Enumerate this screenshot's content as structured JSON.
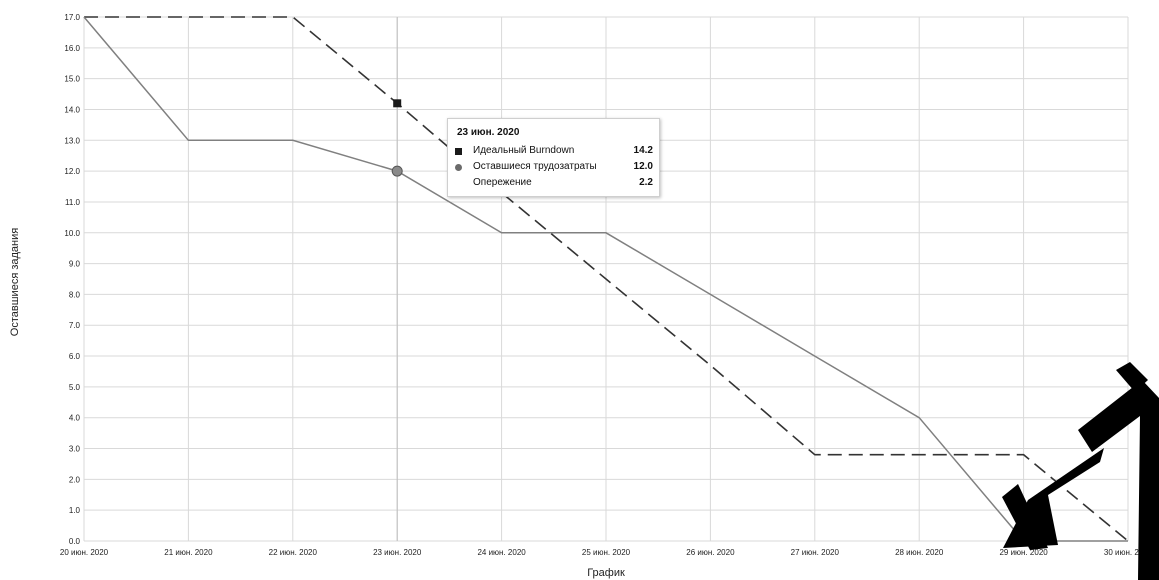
{
  "chart_data": {
    "type": "line",
    "title": "",
    "xlabel": "График",
    "ylabel": "Оставшиеся задания",
    "categories": [
      "20 июн. 2020",
      "21 июн. 2020",
      "22 июн. 2020",
      "23 июн. 2020",
      "24 июн. 2020",
      "25 июн. 2020",
      "26 июн. 2020",
      "27 июн. 2020",
      "28 июн. 2020",
      "29 июн. 2020",
      "30 июн. 2020"
    ],
    "ylim": [
      0,
      17
    ],
    "yticks": [
      "0.0",
      "1.0",
      "2.0",
      "3.0",
      "4.0",
      "5.0",
      "6.0",
      "7.0",
      "8.0",
      "9.0",
      "10.0",
      "11.0",
      "12.0",
      "13.0",
      "14.0",
      "15.0",
      "16.0",
      "17.0"
    ],
    "grid": true,
    "series": [
      {
        "name": "Идеальный Burndown",
        "style": "dashed",
        "color": "#333333",
        "values": [
          17,
          17,
          17,
          14.2,
          11.3,
          8.5,
          5.7,
          2.8,
          2.8,
          2.8,
          0
        ]
      },
      {
        "name": "Оставшиеся трудозатраты",
        "style": "solid",
        "color": "#808080",
        "values": [
          17,
          13,
          13,
          12,
          10,
          10,
          8,
          6,
          4,
          0,
          0
        ]
      }
    ],
    "hover_index": 3
  },
  "tooltip": {
    "title": "23 июн. 2020",
    "rows": [
      {
        "label": "Идеальный Burndown",
        "value": "14.2",
        "marker": "square"
      },
      {
        "label": "Оставшиеся трудозатраты",
        "value": "12.0",
        "marker": "circle"
      },
      {
        "label": "Опережение",
        "value": "2.2",
        "marker": "none"
      }
    ]
  },
  "colors": {
    "grid": "#d9d9d9",
    "ideal": "#333333",
    "actual": "#808080",
    "watermark": "#000000"
  }
}
